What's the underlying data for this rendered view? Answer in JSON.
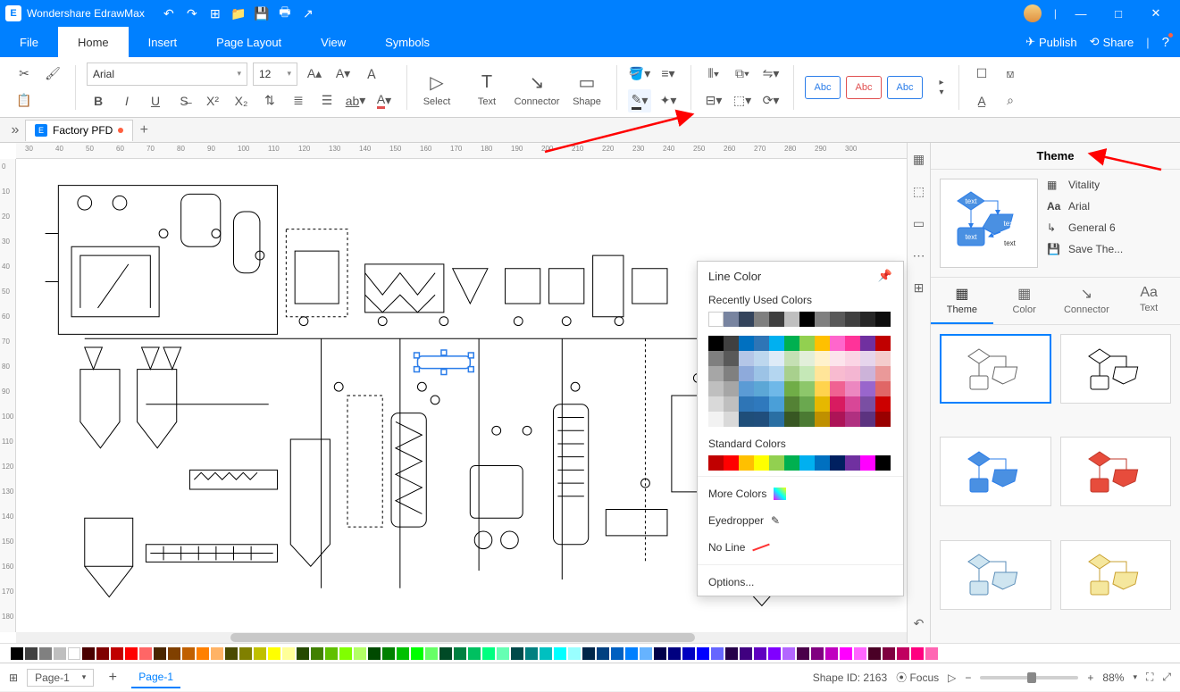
{
  "app": {
    "name": "Wondershare EdrawMax"
  },
  "titlebar_icons": [
    "↶",
    "↷",
    "⊞",
    "📁",
    "💾",
    "🖶",
    "↗"
  ],
  "window_controls": {
    "min": "—",
    "max": "□",
    "close": "✕"
  },
  "menubar": {
    "tabs": [
      "File",
      "Home",
      "Insert",
      "Page Layout",
      "View",
      "Symbols"
    ],
    "active": 1,
    "right": {
      "publish": "Publish",
      "share": "Share",
      "help": "?"
    }
  },
  "ribbon": {
    "font": {
      "name": "Arial",
      "size": "12"
    },
    "tools": {
      "select": "Select",
      "text": "Text",
      "connector": "Connector",
      "shape": "Shape"
    },
    "style_buttons": [
      {
        "label": "Abc",
        "border": "#2b7de9",
        "text": "#2b7de9"
      },
      {
        "label": "Abc",
        "border": "#e05050",
        "text": "#e05050"
      },
      {
        "label": "Abc",
        "border": "#2b7de9",
        "text": "#2b7de9"
      }
    ]
  },
  "doc": {
    "tab_name": "Factory PFD",
    "modified": true
  },
  "hruler_ticks": [
    30,
    40,
    50,
    60,
    70,
    80,
    90,
    100,
    110,
    120,
    130,
    140,
    150,
    160,
    170,
    180,
    190,
    200,
    210,
    220,
    230,
    240,
    250,
    260,
    270,
    280,
    290,
    300
  ],
  "vruler_ticks": [
    0,
    10,
    20,
    30,
    40,
    50,
    60,
    70,
    80,
    90,
    100,
    110,
    120,
    130,
    140,
    150,
    160,
    170,
    180
  ],
  "popup": {
    "title": "Line Color",
    "recent_label": "Recently Used Colors",
    "recent": [
      "#ffffff",
      "#7884a0",
      "#34445c",
      "#7f7f7f",
      "#3f3f3f",
      "#bfbfbf",
      "#000000",
      "#7f7f7f",
      "#595959",
      "#3f3f3f",
      "#262626",
      "#0d0d0d"
    ],
    "main_grid": [
      [
        "#000000",
        "#404040",
        "#0070c0",
        "#2e75b6",
        "#00b0f0",
        "#00b050",
        "#92d050",
        "#ffc000",
        "#ff66cc",
        "#ff3399",
        "#7030a0",
        "#c00000"
      ],
      [
        "#7f7f7f",
        "#595959",
        "#b4c6e7",
        "#bdd7ee",
        "#deebf7",
        "#c5e0b4",
        "#e2efda",
        "#fff2cc",
        "#fce4ec",
        "#fbd5e5",
        "#e6d5ec",
        "#f4cccc"
      ],
      [
        "#a6a6a6",
        "#808080",
        "#8eaadb",
        "#9cc3e6",
        "#b4d6f0",
        "#a8d08d",
        "#c5e8b7",
        "#ffe599",
        "#f8bbd0",
        "#f4b6d2",
        "#ccb3d9",
        "#ea9999"
      ],
      [
        "#bfbfbf",
        "#a6a6a6",
        "#5b9bd5",
        "#5ca7d6",
        "#6fb8e8",
        "#70ad47",
        "#8dc76b",
        "#ffd34d",
        "#f06292",
        "#ec87c0",
        "#9966cc",
        "#e06666"
      ],
      [
        "#d9d9d9",
        "#bfbfbf",
        "#2e75b6",
        "#2f79bd",
        "#4a9fd8",
        "#548235",
        "#6aa84f",
        "#e6b800",
        "#d81b60",
        "#d84797",
        "#7a4fa3",
        "#cc0000"
      ],
      [
        "#f2f2f2",
        "#d9d9d9",
        "#1f4e79",
        "#204e7c",
        "#2a6fa3",
        "#385723",
        "#4b7a33",
        "#bf9000",
        "#ad1457",
        "#b03080",
        "#5c3380",
        "#990000"
      ]
    ],
    "standard_label": "Standard Colors",
    "standard": [
      "#c00000",
      "#ff0000",
      "#ffc000",
      "#ffff00",
      "#92d050",
      "#00b050",
      "#00b0f0",
      "#0070c0",
      "#002060",
      "#7030a0",
      "#ff00ff",
      "#000000"
    ],
    "more": "More Colors",
    "eyedropper": "Eyedropper",
    "noline": "No Line",
    "options": "Options..."
  },
  "theme": {
    "header": "Theme",
    "opts": {
      "vitality": "Vitality",
      "font": "Arial",
      "connector": "General 6",
      "save": "Save The..."
    },
    "tabs": [
      "Theme",
      "Color",
      "Connector",
      "Text"
    ],
    "active": 0,
    "cards": [
      {
        "stroke": "#666",
        "fill": "#fff"
      },
      {
        "stroke": "#000",
        "fill": "#fff"
      },
      {
        "stroke": "#2b7de9",
        "fill": "#4a90e2"
      },
      {
        "stroke": "#c0392b",
        "fill": "#e74c3c"
      },
      {
        "stroke": "#5a8db8",
        "fill": "#cfe5f0"
      },
      {
        "stroke": "#c9a030",
        "fill": "#f5e79e"
      }
    ]
  },
  "swatches": [
    "#000",
    "#404040",
    "#808080",
    "#bfbfbf",
    "#fff",
    "#4a0000",
    "#800000",
    "#c00000",
    "#ff0000",
    "#ff6666",
    "#4a2600",
    "#804000",
    "#c06000",
    "#ff8000",
    "#ffb366",
    "#4a4a00",
    "#808000",
    "#c0c000",
    "#ffff00",
    "#ffff99",
    "#264a00",
    "#408000",
    "#60c000",
    "#80ff00",
    "#b3ff66",
    "#004a00",
    "#008000",
    "#00c000",
    "#00ff00",
    "#66ff66",
    "#004a26",
    "#008040",
    "#00c060",
    "#00ff80",
    "#66ffb3",
    "#004a4a",
    "#008080",
    "#00c0c0",
    "#00ffff",
    "#99ffff",
    "#00264a",
    "#004080",
    "#0060c0",
    "#0080ff",
    "#66b3ff",
    "#00004a",
    "#000080",
    "#0000c0",
    "#0000ff",
    "#6666ff",
    "#26004a",
    "#400080",
    "#6000c0",
    "#8000ff",
    "#b366ff",
    "#4a004a",
    "#800080",
    "#c000c0",
    "#ff00ff",
    "#ff66ff",
    "#4a0026",
    "#800040",
    "#c00060",
    "#ff0080",
    "#ff66b3"
  ],
  "status": {
    "page_dd": "Page-1",
    "page_tab": "Page-1",
    "shape_id": "Shape ID: 2163",
    "focus": "Focus",
    "zoom": "88%"
  },
  "preview_text": "text",
  "annotations": {
    "arrow_color": "#ff0000"
  }
}
